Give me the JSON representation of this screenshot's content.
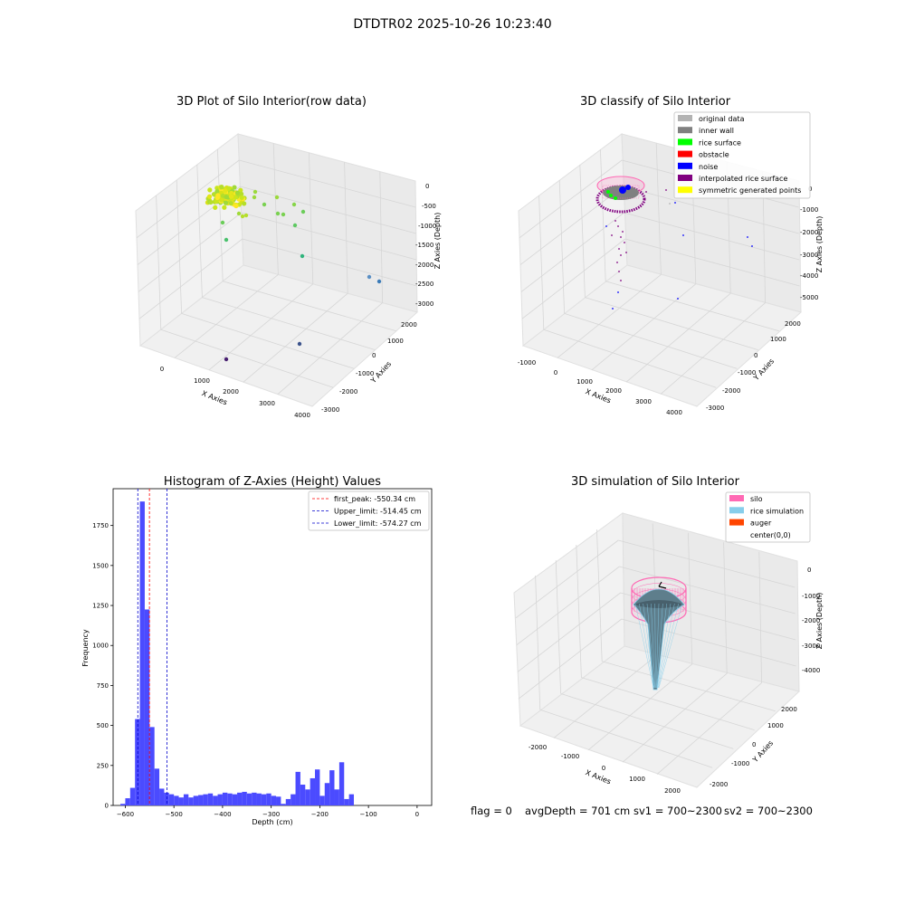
{
  "suptitle": "DTDTR02 2025-10-26 10:23:40",
  "footer": {
    "flag": "flag = 0",
    "avgDepth": "avgDepth = 701 cm",
    "sv1": "sv1 = 700~2300",
    "sv2": "sv2 = 700~2300"
  },
  "colors": {
    "hist_bar": "#4b4bff",
    "peak_line": "#ff0000",
    "limit_line": "#0000cc",
    "pane": "#f2f2f2",
    "grid": "#d9d9d9"
  },
  "plot1": {
    "title": "3D Plot of Silo Interior(row data)",
    "xlabel": "X Axies",
    "ylabel": "Y Axies",
    "zlabel": "Z Axies (Depth)",
    "xticks": [
      "0",
      "1000",
      "2000",
      "3000",
      "4000"
    ],
    "yticks": [
      "-3000",
      "-2000",
      "-1000",
      "0",
      "1000",
      "2000"
    ],
    "zticks": [
      "0",
      "-500",
      "-1000",
      "-1500",
      "-2000",
      "-2500",
      "-3000"
    ]
  },
  "plot2": {
    "title": "3D classify of Silo Interior",
    "xlabel": "X Axies",
    "ylabel": "Y Axies",
    "zlabel": "Z Axies (Depth)",
    "xticks": [
      "-1000",
      "0",
      "1000",
      "2000",
      "3000",
      "4000"
    ],
    "yticks": [
      "-3000",
      "-2000",
      "-1000",
      "0",
      "1000",
      "2000"
    ],
    "zticks": [
      "0",
      "-1000",
      "-2000",
      "-3000",
      "-4000",
      "-5000"
    ],
    "legend": [
      {
        "label": "original data",
        "color": "#b3b3b3"
      },
      {
        "label": "inner wall",
        "color": "#808080"
      },
      {
        "label": "rice surface",
        "color": "#00ff00"
      },
      {
        "label": "obstacle",
        "color": "#ff0000"
      },
      {
        "label": "noise",
        "color": "#0000ff"
      },
      {
        "label": "interpolated rice surface",
        "color": "#800080"
      },
      {
        "label": "symmetric generated points",
        "color": "#ffff00"
      }
    ]
  },
  "plot4": {
    "title": "3D simulation of Silo Interior",
    "xlabel": "X Axies",
    "ylabel": "Y Axies",
    "zlabel": "Z Axies (Depth)",
    "xticks": [
      "-2000",
      "-1000",
      "0",
      "1000",
      "2000"
    ],
    "yticks": [
      "-2000",
      "-1000",
      "0",
      "1000",
      "2000"
    ],
    "zticks": [
      "0",
      "-1000",
      "-2000",
      "-3000",
      "-4000"
    ],
    "legend": [
      {
        "label": "silo",
        "color": "#ff69b4"
      },
      {
        "label": "rice simulation",
        "color": "#87ceeb"
      },
      {
        "label": "auger",
        "color": "#ff4500"
      },
      {
        "label": "center(0,0)",
        "color": ""
      }
    ]
  },
  "chart_data": {
    "type": "bar",
    "title": "Histogram of Z-Axies (Height) Values",
    "xlabel": "Depth (cm)",
    "ylabel": "Frequency",
    "xlim": [
      -625,
      30
    ],
    "ylim": [
      0,
      1980
    ],
    "xticks": [
      -600,
      -500,
      -400,
      -300,
      -200,
      -100,
      0
    ],
    "yticks": [
      0,
      250,
      500,
      750,
      1000,
      1250,
      1500,
      1750
    ],
    "bin_start": -610,
    "bin_width": 10,
    "values": [
      10,
      45,
      110,
      540,
      1900,
      1225,
      490,
      230,
      105,
      80,
      70,
      60,
      50,
      70,
      50,
      60,
      65,
      70,
      75,
      60,
      70,
      80,
      75,
      70,
      80,
      85,
      75,
      80,
      75,
      70,
      75,
      60,
      55,
      10,
      40,
      70,
      210,
      130,
      100,
      170,
      225,
      60,
      140,
      220,
      100,
      270,
      40,
      70
    ],
    "vlines": [
      {
        "x": -550.34,
        "label": "first_peak: -550.34 cm",
        "color": "#ff0000"
      },
      {
        "x": -514.45,
        "label": "Upper_limit: -514.45 cm",
        "color": "#0000cc"
      },
      {
        "x": -574.27,
        "label": "Lower_limit: -574.27 cm",
        "color": "#0000cc"
      }
    ],
    "legend_position": "upper right"
  }
}
